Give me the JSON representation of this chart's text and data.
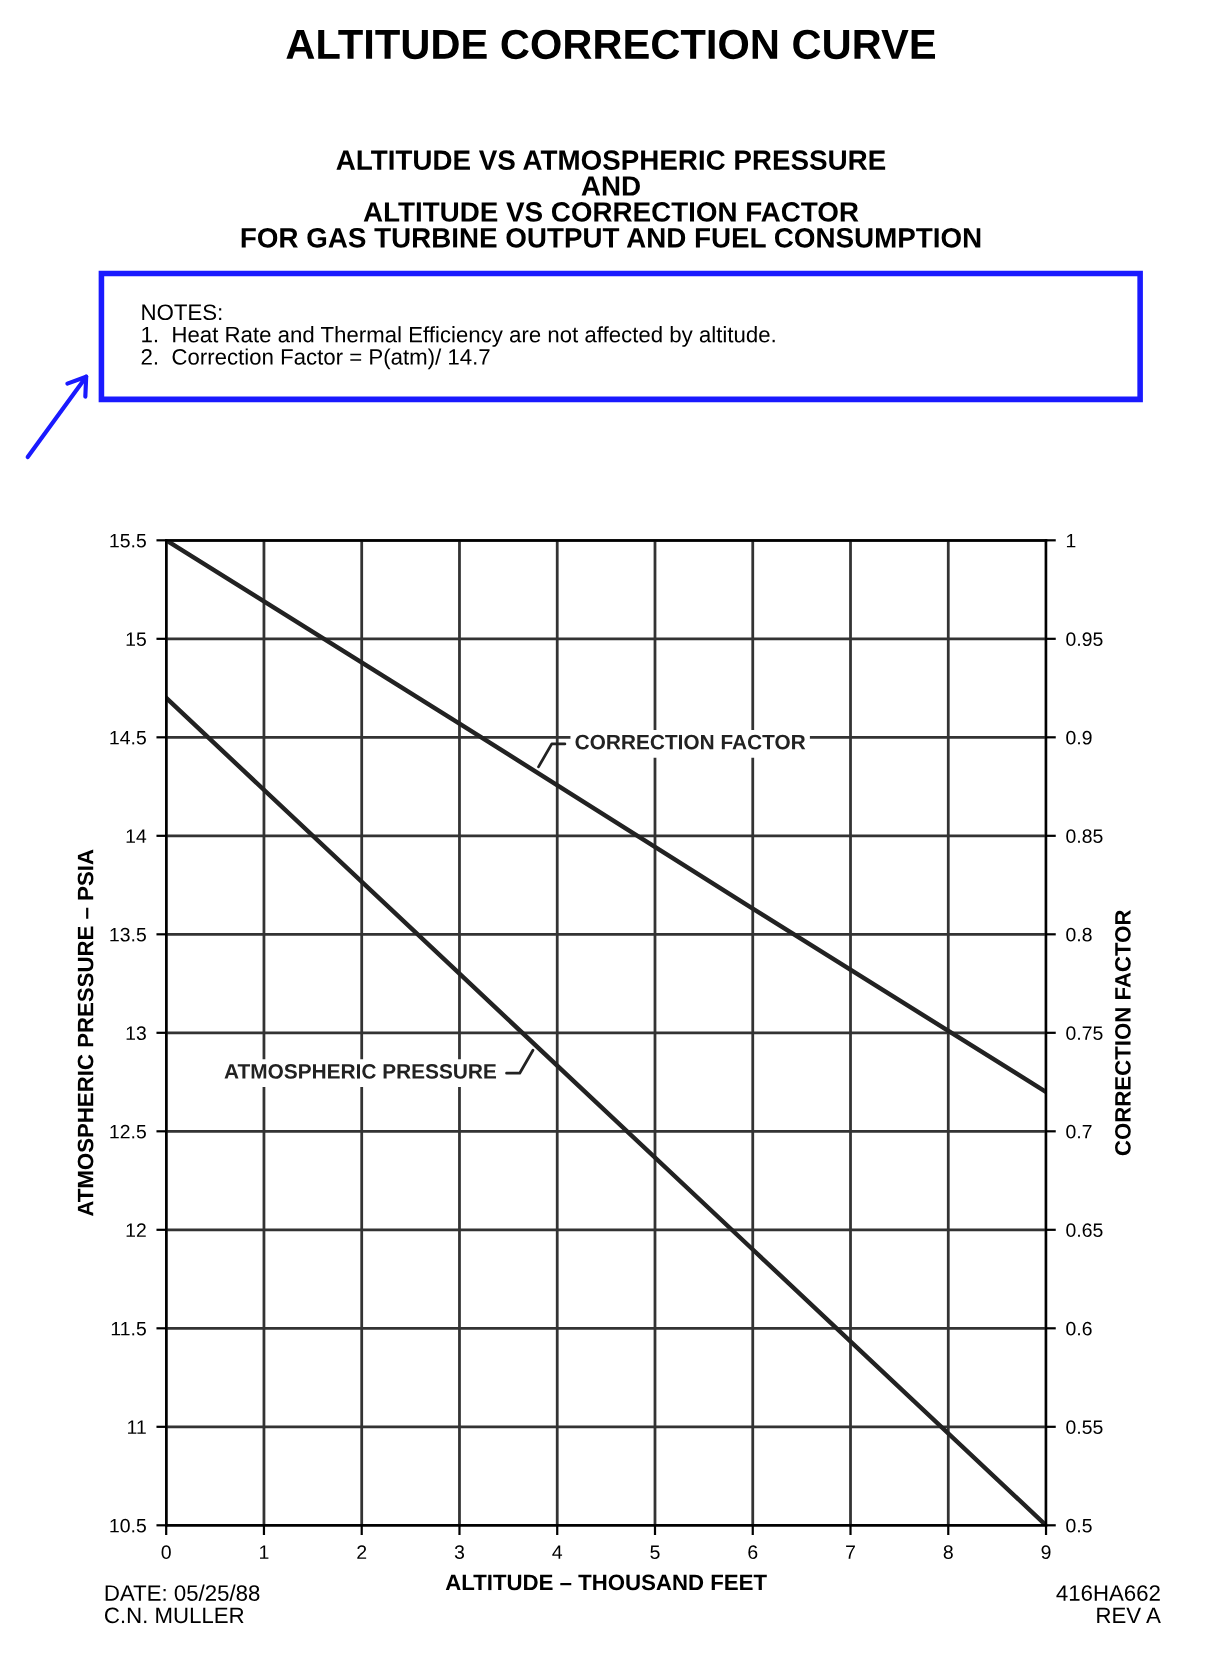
{
  "chart_data": {
    "type": "line",
    "title": "ALTITUDE CORRECTION CURVE",
    "subtitle": "ALTITUDE VS ATMOSPHERIC PRESSURE\nAND\nALTITUDE VS CORRECTION FACTOR\nFOR GAS TURBINE OUTPUT AND FUEL CONSUMPTION",
    "xlabel": "ALTITUDE – THOUSAND FEET",
    "ylabel": "ATMOSPHERIC PRESSURE – PSIA",
    "y2label": "CORRECTION FACTOR",
    "series": [
      {
        "name": "ATMOSPHERIC PRESSURE",
        "color": "#222222",
        "x": [
          0,
          3,
          6,
          9
        ],
        "values": [
          14.7,
          13.3,
          11.9,
          10.5
        ]
      },
      {
        "name": "CORRECTION FACTOR",
        "color": "#222222",
        "x": [
          0,
          3,
          6,
          9
        ],
        "values": [
          1.0,
          0.907,
          0.813,
          0.72
        ],
        "axis": "y2"
      }
    ],
    "xlim": [
      0,
      9
    ],
    "xticks": [
      0,
      1,
      2,
      3,
      4,
      5,
      6,
      7,
      8,
      9
    ],
    "ylim": [
      10.5,
      15.5
    ],
    "yticks": [
      10.5,
      11,
      11.5,
      12,
      12.5,
      13,
      13.5,
      14,
      14.5,
      15,
      15.5
    ],
    "y2lim": [
      0.5,
      1
    ],
    "y2ticks": [
      0.5,
      0.55,
      0.6,
      0.65,
      0.7,
      0.75,
      0.8,
      0.85,
      0.9,
      0.95,
      1
    ],
    "grid": true,
    "line_style": "solid",
    "marker": "none",
    "annotations": [
      "NOTES:\n1.  Heat Rate and Thermal Efficiency are not affected by altitude.\n2.  Correction Factor = P(atm)/ 14.7",
      "DATE: 05/25/88\nC.N. MULLER",
      "416HA662\nREV A"
    ]
  }
}
